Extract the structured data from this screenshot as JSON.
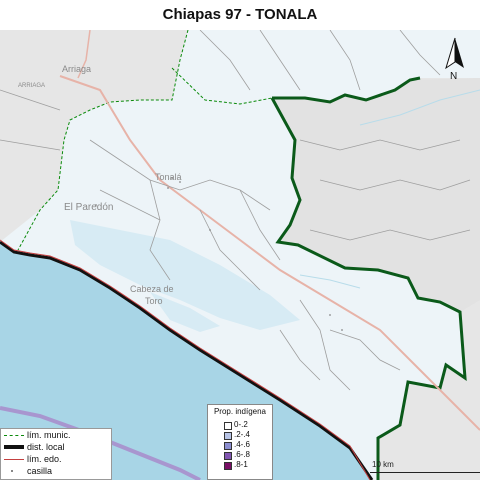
{
  "title": "Chiapas 97 - TONALA",
  "colors": {
    "sea": "#a8d5e6",
    "district_fill": "#edf4f8",
    "outside_fill": "#e6e6e6",
    "lagoon": "#d7ebf4",
    "district_border": "#0b5a1a",
    "municipal_border": "#0a8a0a",
    "state_border": "#c44040",
    "coast_black": "#111111",
    "road_pink": "#e7b3a8",
    "purple_line": "#a896cf"
  },
  "map_labels": {
    "arriaga": "Arriaga",
    "arriaga_road": "ARRIAGA",
    "tonala": "Tonalá",
    "paredon": "El Paredón",
    "cabeza_toro_1": "Cabeza de",
    "cabeza_toro_2": "Toro"
  },
  "north_arrow": {
    "label": "N"
  },
  "scale": {
    "label": "10 km"
  },
  "legend_lines": [
    {
      "label": "lím. munic.",
      "style": "dashed-green"
    },
    {
      "label": "dist. local",
      "style": "thick-black"
    },
    {
      "label": "lím. edo.",
      "style": "red"
    },
    {
      "label": "casilla",
      "style": "dot"
    }
  ],
  "legend_prop": {
    "title": "Prop. indígena",
    "items": [
      {
        "label": "0-.2",
        "color": "#ffffff"
      },
      {
        "label": ".2-.4",
        "color": "#b8c4e6"
      },
      {
        "label": ".4-.6",
        "color": "#8c8ed0"
      },
      {
        "label": ".6-.8",
        "color": "#8256b2"
      },
      {
        "label": ".8-1",
        "color": "#7a0f66"
      }
    ]
  }
}
